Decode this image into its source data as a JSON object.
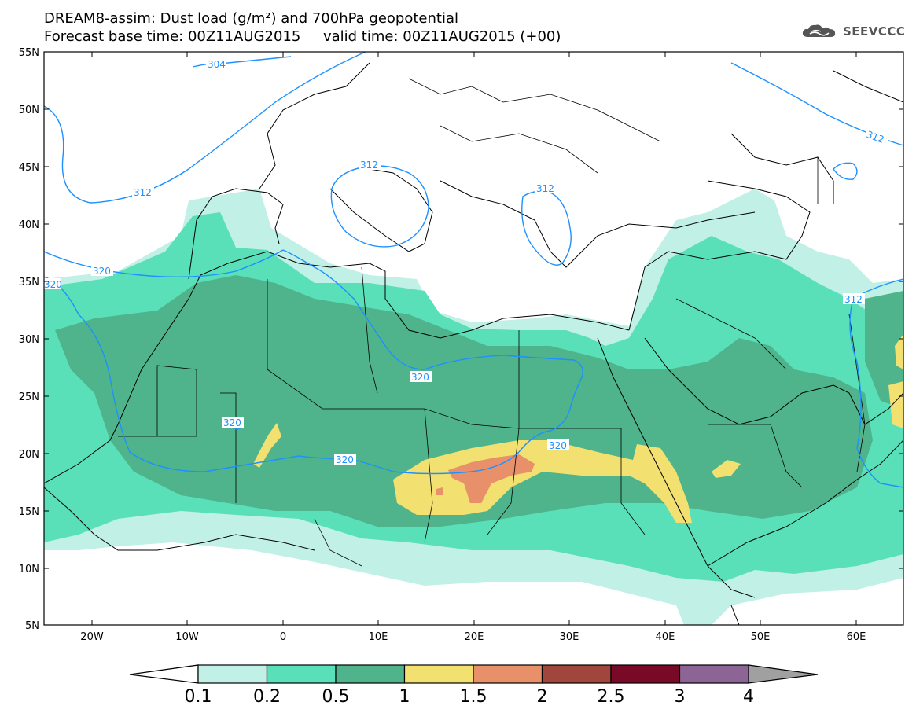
{
  "title": {
    "line1": "DREAM8-assim: Dust load (g/m²) and 700hPa geopotential",
    "line2": "Forecast base time: 00Z11AUG2015     valid time: 00Z11AUG2015 (+00)"
  },
  "logo": {
    "text": "SEEVCCC",
    "icon": "cloud-icon"
  },
  "map": {
    "lat_labels": [
      "55N",
      "50N",
      "45N",
      "40N",
      "35N",
      "30N",
      "25N",
      "20N",
      "15N",
      "10N",
      "5N"
    ],
    "lon_labels": [
      "20W",
      "10W",
      "0",
      "10E",
      "20E",
      "30E",
      "40E",
      "50E",
      "60E"
    ],
    "contour_labels": [
      "304",
      "312",
      "312",
      "312",
      "312",
      "312",
      "320",
      "320",
      "320",
      "320",
      "320",
      "320"
    ]
  },
  "colorbar": {
    "labels": [
      "0.1",
      "0.2",
      "0.5",
      "1",
      "1.5",
      "2",
      "2.5",
      "3",
      "4"
    ],
    "colors": [
      "#c1f0e6",
      "#5ae0b8",
      "#4fb48c",
      "#f2e070",
      "#e8906a",
      "#a0463c",
      "#780a28",
      "#8c6496",
      "#a0a0a0"
    ]
  },
  "fill_colors": {
    "level_01": "#c1f0e6",
    "level_02": "#5ae0b8",
    "level_05": "#4fb48c",
    "level_1": "#f2e070",
    "level_15": "#e8906a",
    "contour": "#1e90ff"
  }
}
